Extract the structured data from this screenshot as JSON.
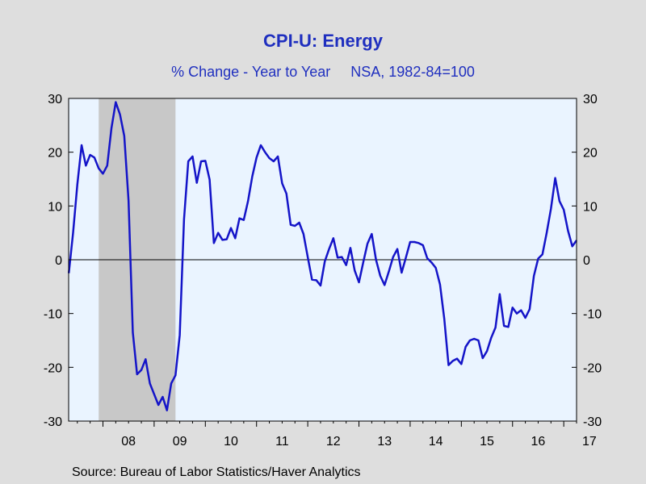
{
  "chart_data": {
    "type": "line",
    "title": "CPI-U: Energy",
    "subtitle": "% Change - Year to Year     NSA, 1982-84=100",
    "source": "Source:  Bureau of Labor Statistics/Haver Analytics",
    "ylim": [
      -30,
      30
    ],
    "yticks": [
      -30,
      -20,
      -10,
      0,
      10,
      20,
      30
    ],
    "ytick_labels": [
      "-30",
      "-20",
      "-10",
      "0",
      "10",
      "20",
      "30"
    ],
    "xlim": [
      2007.33,
      2017.25
    ],
    "x_year_labels": [
      {
        "label": "08",
        "year": 2008
      },
      {
        "label": "09",
        "year": 2009
      },
      {
        "label": "10",
        "year": 2010
      },
      {
        "label": "11",
        "year": 2011
      },
      {
        "label": "12",
        "year": 2012
      },
      {
        "label": "13",
        "year": 2013
      },
      {
        "label": "14",
        "year": 2014
      },
      {
        "label": "15",
        "year": 2015
      },
      {
        "label": "16",
        "year": 2016
      },
      {
        "label": "17",
        "year": 2017
      }
    ],
    "recession_shading": {
      "start": 2007.917,
      "end": 2009.417
    },
    "zero_line": true,
    "grid": false,
    "colors": {
      "line": "#1414c8",
      "recession": "#c8c8c8",
      "plot_background": "#eaf4ff",
      "page_background": "#dedede",
      "title": "#1f2fbf"
    },
    "series": [
      {
        "start": "2007-05",
        "frequency": "monthly",
        "values": [
          -2.5,
          5,
          14,
          21.3,
          17.5,
          19.5,
          19,
          17,
          16,
          17.5,
          24.5,
          29.3,
          27,
          23,
          11,
          -13.5,
          -21.3,
          -20.5,
          -18.5,
          -23,
          -25,
          -27,
          -25.5,
          -28,
          -23,
          -21.5,
          -14,
          7.5,
          18.3,
          19.2,
          14.3,
          18.3,
          18.4,
          14.9,
          3.1,
          5,
          3.7,
          3.8,
          5.9,
          4,
          7.7,
          7.4,
          10.9,
          15.5,
          19,
          21.3,
          20,
          18.9,
          18.3,
          19.2,
          14.2,
          12.3,
          6.5,
          6.3,
          6.9,
          4.8,
          0.5,
          -3.7,
          -3.8,
          -4.8,
          -0.3,
          2,
          4,
          0.4,
          0.5,
          -1,
          2.2,
          -2,
          -4.2,
          -0.5,
          3,
          4.8,
          0,
          -3,
          -4.7,
          -2.2,
          0.5,
          2,
          -2.4,
          0.4,
          3.3,
          3.3,
          3.1,
          2.7,
          0.3,
          -0.5,
          -1.5,
          -4.6,
          -11,
          -19.6,
          -18.8,
          -18.4,
          -19.4,
          -16.2,
          -15,
          -14.7,
          -15,
          -18.3,
          -17,
          -14.5,
          -12.6,
          -6.4,
          -12.3,
          -12.5,
          -8.9,
          -10,
          -9.4,
          -10.8,
          -9.2,
          -3,
          0.2,
          1,
          5,
          9.5,
          15.2,
          10.9,
          9.3,
          5.4,
          2.5,
          3.6
        ]
      }
    ]
  }
}
